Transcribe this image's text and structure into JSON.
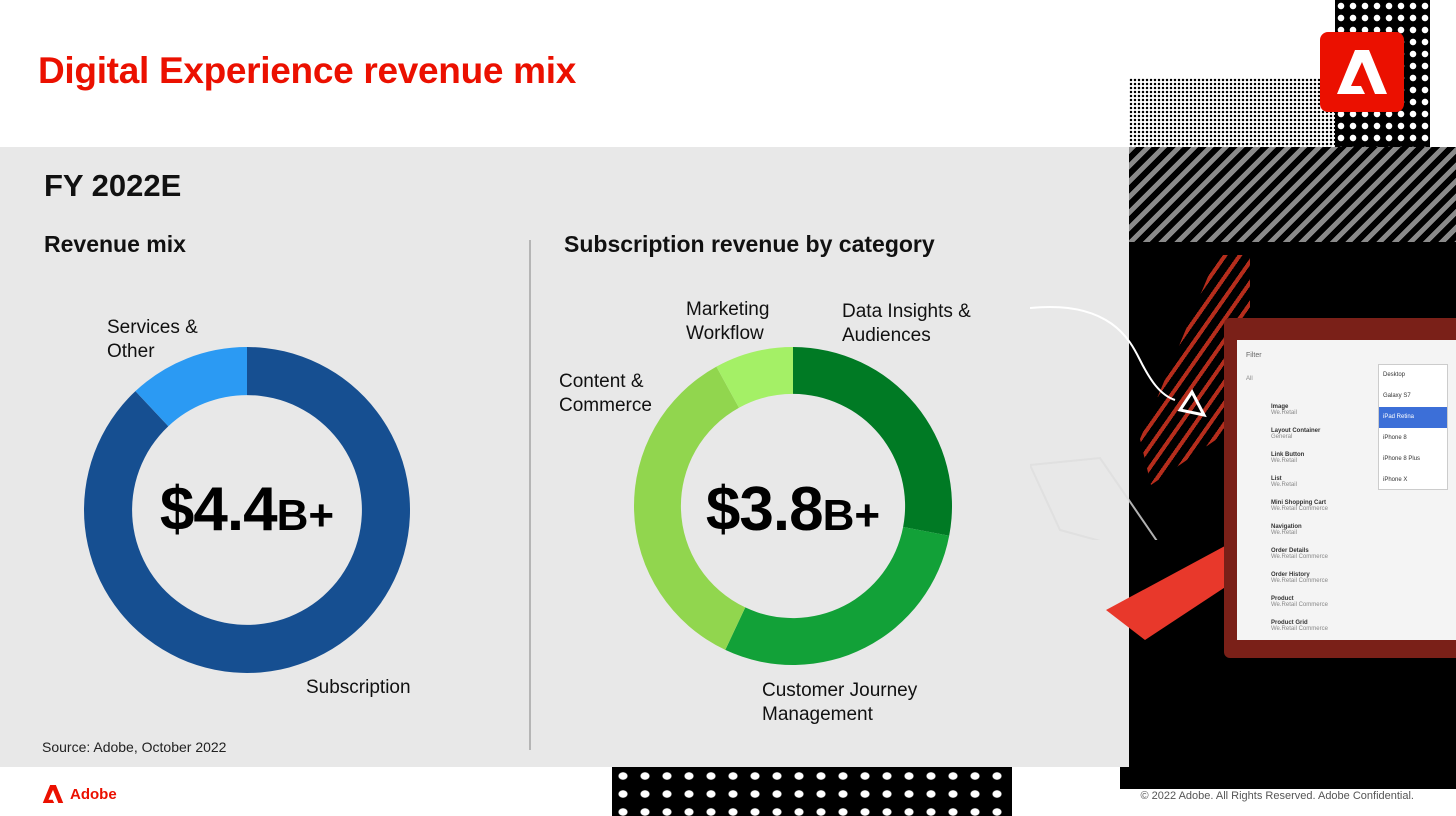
{
  "header": {
    "title": "Digital Experience revenue mix"
  },
  "panel": {
    "period": "FY 2022E",
    "source": "Source: Adobe, October 2022"
  },
  "footer": {
    "brand": "Adobe",
    "copyright": "© 2022 Adobe. All Rights Reserved. Adobe Confidential."
  },
  "colors": {
    "brand_red": "#eb1000",
    "subscription": "#164f91",
    "services_other": "#2b9af3",
    "marketing_workflow": "#a4f066",
    "data_insights": "#007a24",
    "customer_journey": "#12a138",
    "content_commerce": "#91d64e"
  },
  "chart_data": [
    {
      "type": "pie",
      "donut": true,
      "title": "Revenue mix",
      "center_value": "$4.4",
      "center_unit": "B+",
      "categories": [
        "Subscription",
        "Services & Other"
      ],
      "values": [
        88,
        12
      ],
      "colors": [
        "#164f91",
        "#2b9af3"
      ],
      "labels": [
        "Subscription",
        "Services & Other"
      ]
    },
    {
      "type": "pie",
      "donut": true,
      "title": "Subscription revenue by category",
      "center_value": "$3.8",
      "center_unit": "B+",
      "categories": [
        "Data Insights & Audiences",
        "Customer Journey Management",
        "Content & Commerce",
        "Marketing Workflow"
      ],
      "values": [
        28,
        29,
        35,
        8
      ],
      "colors": [
        "#007a24",
        "#12a138",
        "#91d64e",
        "#a4f066"
      ],
      "labels": [
        "Data Insights & Audiences",
        "Customer Journey Management",
        "Content & Commerce",
        "Marketing Workflow"
      ]
    }
  ],
  "mock_ui": {
    "filter": "Filter",
    "all": "All",
    "rows": [
      {
        "title": "Image",
        "sub": "We.Retail"
      },
      {
        "title": "Layout Container",
        "sub": "General"
      },
      {
        "title": "Link Button",
        "sub": "We.Retail"
      },
      {
        "title": "List",
        "sub": "We.Retail"
      },
      {
        "title": "Mini Shopping Cart",
        "sub": "We.Retail Commerce"
      },
      {
        "title": "Navigation",
        "sub": "We.Retail"
      },
      {
        "title": "Order Details",
        "sub": "We.Retail Commerce"
      },
      {
        "title": "Order History",
        "sub": "We.Retail Commerce"
      },
      {
        "title": "Product",
        "sub": "We.Retail Commerce"
      },
      {
        "title": "Product Grid",
        "sub": "We.Retail Commerce"
      }
    ],
    "devices": [
      "Desktop",
      "Galaxy S7",
      "iPad Retina",
      "iPhone 8",
      "iPhone 8 Plus",
      "iPhone X"
    ],
    "selected_device": "iPad Retina"
  }
}
